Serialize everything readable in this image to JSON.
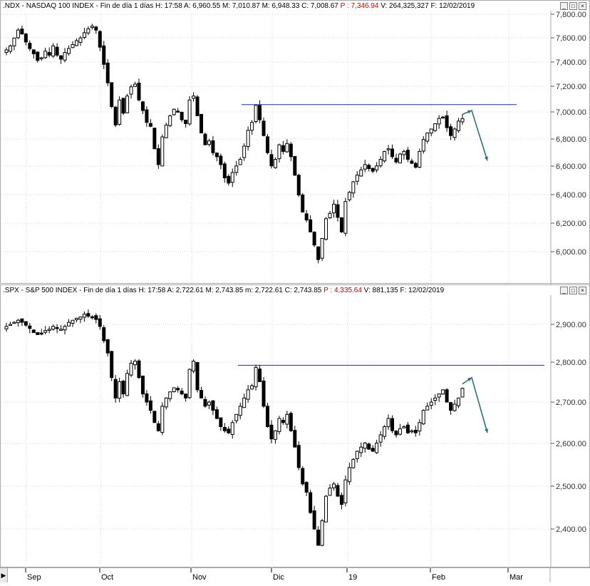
{
  "panels": [
    {
      "id": "ndx",
      "header": {
        "symbol_desc": ".NDX - NASDAQ 100 INDEX - Fin de día 1 días",
        "h": "H: 17:58",
        "a": "A: 6,960.55",
        "m": "M: 7,010.87",
        "mm": "M: 6,948.33",
        "c": "C: 7,008.67",
        "p": "P : 7,346.94",
        "v": "V: 264,325,327",
        "f": "F: 12/02/2019"
      },
      "resistance_color": "#1f2f8a",
      "arrow_color": "#2f6f82"
    },
    {
      "id": "spx",
      "header": {
        "symbol_desc": ".SPX - S&P 500 INDEX - Fin de día 1 días",
        "h": "H: 17:58",
        "a": "A: 2,722.61",
        "m": "M: 2,743.85",
        "mm": "m: 2,722.61",
        "c": "C: 2,743.85",
        "p": "P : 4,335.64",
        "v": "V: 881,135",
        "f": "F: 12/02/2019"
      },
      "resistance_color": "#1f2f8a",
      "arrow_color": "#2f6f82"
    }
  ],
  "xaxis": {
    "labels": [
      "Sep",
      "Oct",
      "Nov",
      "Dic",
      "19",
      "Feb",
      "Mar"
    ]
  },
  "window_buttons": [
    "minimize",
    "maximize",
    "close"
  ],
  "chart_data": [
    {
      "type": "candlestick",
      "symbol": ".NDX",
      "yticks": [
        "6,000.00",
        "6,200.00",
        "6,400.00",
        "6,600.00",
        "6,800.00",
        "7,000.00",
        "7,200.00",
        "7,400.00",
        "7,600.00",
        "7,800.00"
      ],
      "ylim": [
        5880,
        7820
      ],
      "grid": true,
      "resistance_level": 7115,
      "projection": {
        "peak": 7070,
        "target": 6690
      },
      "ohlc_close": [
        7530,
        7560,
        7620,
        7680,
        7650,
        7590,
        7540,
        7500,
        7450,
        7470,
        7520,
        7490,
        7560,
        7490,
        7460,
        7510,
        7540,
        7570,
        7600,
        7620,
        7660,
        7690,
        7710,
        7680,
        7550,
        7420,
        7280,
        7100,
        6960,
        7150,
        7050,
        7180,
        7250,
        7270,
        7150,
        7070,
        6980,
        6950,
        6780,
        6660,
        6870,
        6960,
        7030,
        7080,
        7060,
        7000,
        6970,
        7150,
        7180,
        7030,
        6900,
        6810,
        6840,
        6750,
        6720,
        6660,
        6560,
        6520,
        6600,
        6650,
        6700,
        6800,
        6920,
        6980,
        7110,
        7000,
        6880,
        6750,
        6650,
        6700,
        6810,
        6760,
        6820,
        6720,
        6580,
        6430,
        6300,
        6240,
        6150,
        6050,
        5940,
        6100,
        6250,
        6290,
        6360,
        6260,
        6150,
        6380,
        6450,
        6530,
        6580,
        6620,
        6660,
        6630,
        6610,
        6650,
        6700,
        6760,
        6780,
        6720,
        6680,
        6740,
        6760,
        6700,
        6670,
        6640,
        6760,
        6850,
        6900,
        6930,
        6970,
        7010,
        7020,
        6940,
        6880,
        6930,
        6990,
        7008.67
      ]
    },
    {
      "type": "candlestick",
      "symbol": ".SPX",
      "yticks": [
        "2,400.00",
        "2,500.00",
        "2,600.00",
        "2,700.00",
        "2,800.00",
        "2,900.00"
      ],
      "ylim": [
        2335,
        2940
      ],
      "grid": true,
      "resistance_level": 2800,
      "projection": {
        "peak": 2770,
        "target": 2635
      },
      "ohlc_close": [
        2895,
        2900,
        2905,
        2910,
        2905,
        2898,
        2890,
        2880,
        2875,
        2878,
        2885,
        2888,
        2895,
        2890,
        2888,
        2895,
        2905,
        2910,
        2915,
        2918,
        2925,
        2920,
        2918,
        2912,
        2895,
        2860,
        2830,
        2770,
        2720,
        2760,
        2730,
        2780,
        2805,
        2810,
        2770,
        2730,
        2710,
        2690,
        2660,
        2640,
        2700,
        2720,
        2735,
        2745,
        2740,
        2730,
        2720,
        2790,
        2810,
        2740,
        2720,
        2700,
        2710,
        2690,
        2670,
        2650,
        2640,
        2635,
        2660,
        2680,
        2700,
        2720,
        2740,
        2750,
        2795,
        2760,
        2700,
        2650,
        2620,
        2640,
        2670,
        2660,
        2680,
        2640,
        2600,
        2550,
        2510,
        2490,
        2440,
        2400,
        2360,
        2420,
        2480,
        2500,
        2510,
        2480,
        2460,
        2520,
        2550,
        2570,
        2590,
        2600,
        2610,
        2595,
        2590,
        2610,
        2630,
        2650,
        2670,
        2640,
        2630,
        2645,
        2650,
        2635,
        2640,
        2635,
        2660,
        2690,
        2700,
        2710,
        2720,
        2730,
        2740,
        2710,
        2690,
        2705,
        2720,
        2743.85
      ]
    }
  ]
}
